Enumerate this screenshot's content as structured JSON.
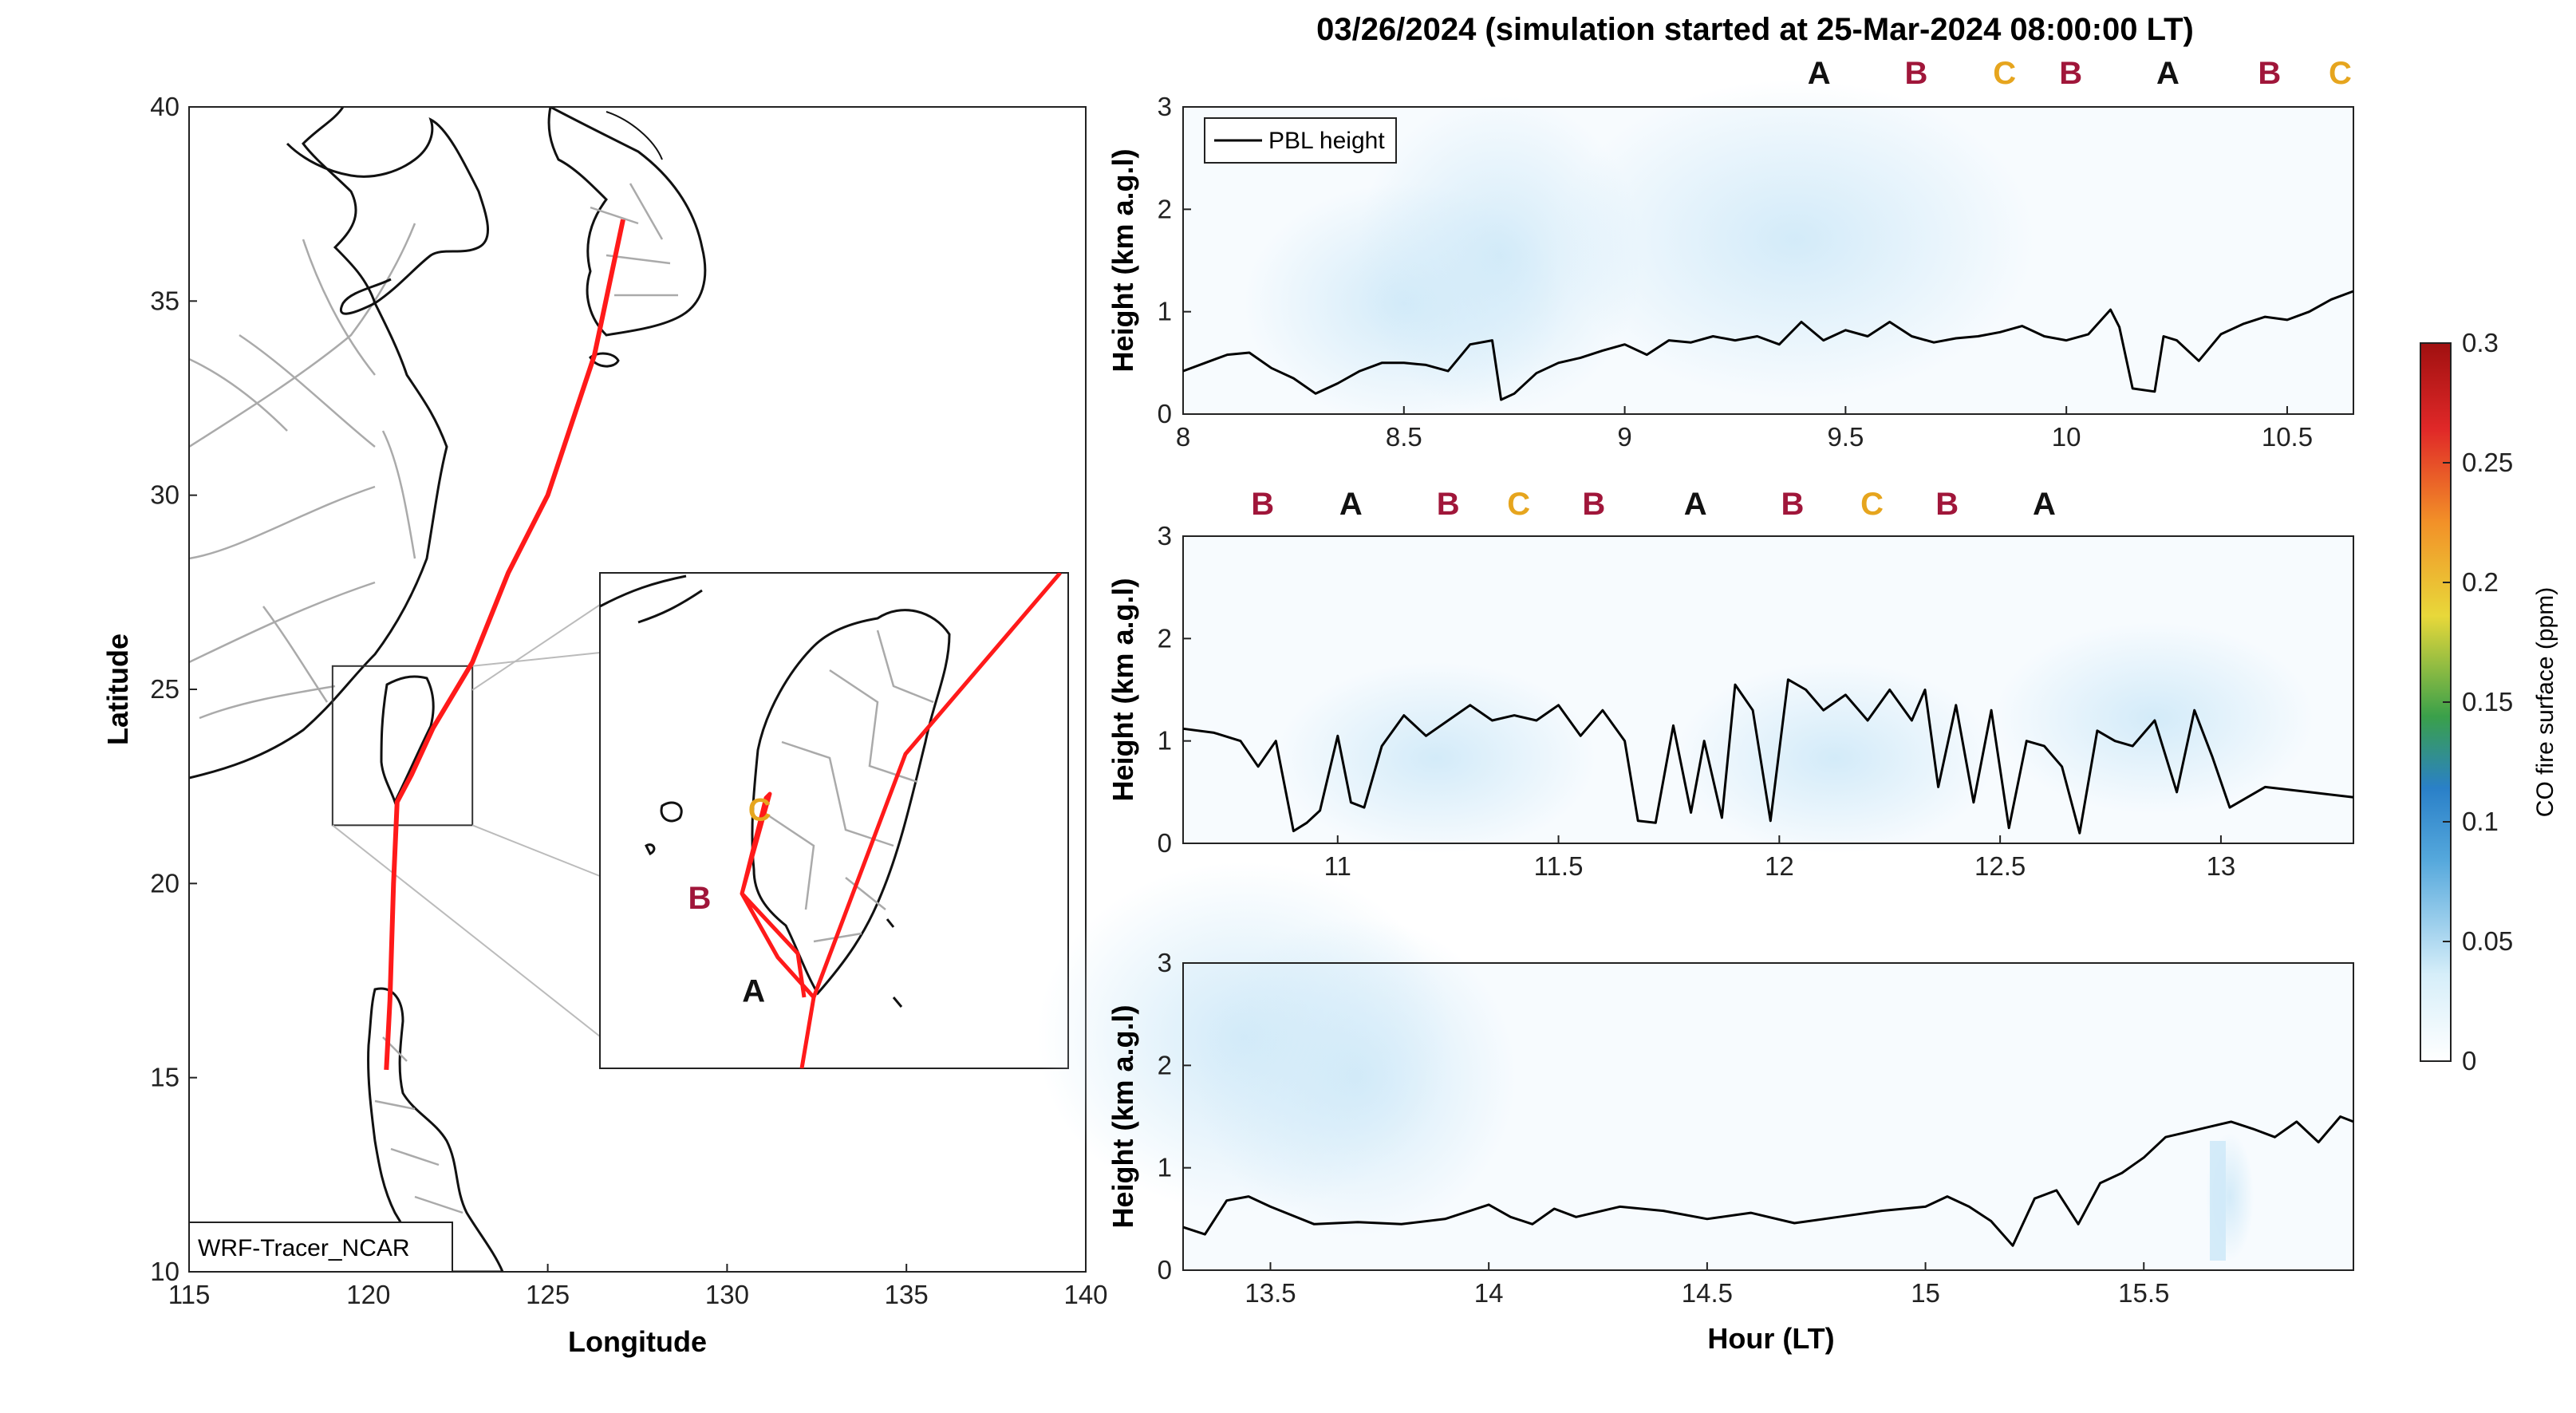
{
  "title": "03/26/2024 (simulation started at 25-Mar-2024 08:00:00 LT)",
  "colors": {
    "A": "#111111",
    "B": "#a0163a",
    "C": "#e6a51e",
    "track": "#ff1a1a",
    "coast": "#111111",
    "borders": "#aaaaaa",
    "pbl": "#000000",
    "fireLight": "#cfe9f8"
  },
  "map": {
    "xlabel": "Longitude",
    "ylabel": "Latitude",
    "xlim": [
      115,
      140
    ],
    "ylim": [
      10,
      40
    ],
    "xticks": [
      "115",
      "120",
      "125",
      "130",
      "135",
      "140"
    ],
    "yticks": [
      "10",
      "15",
      "20",
      "25",
      "30",
      "35",
      "40"
    ],
    "model_label": "WRF-Tracer_NCAR",
    "track": [
      [
        127.1,
        37.1
      ],
      [
        126.3,
        33.6
      ],
      [
        125.0,
        30.0
      ],
      [
        123.9,
        28.0
      ],
      [
        122.9,
        25.7
      ],
      [
        121.8,
        24.0
      ],
      [
        121.2,
        22.8
      ],
      [
        120.8,
        22.1
      ],
      [
        120.7,
        20.0
      ],
      [
        120.6,
        17.0
      ],
      [
        120.5,
        15.2
      ]
    ],
    "inset_box": {
      "lon": [
        119.0,
        122.9
      ],
      "lat": [
        21.5,
        25.6
      ]
    },
    "inset": {
      "lon": [
        119.0,
        122.9
      ],
      "lat": [
        21.5,
        25.6
      ],
      "labels": [
        {
          "text": "A",
          "lon": 120.28,
          "lat": 22.05
        },
        {
          "text": "B",
          "lon": 119.83,
          "lat": 22.82
        },
        {
          "text": "C",
          "lon": 120.33,
          "lat": 23.55
        }
      ]
    }
  },
  "panel_markers": {
    "panel1": [
      {
        "text": "A",
        "hour": 9.44
      },
      {
        "text": "B",
        "hour": 9.66
      },
      {
        "text": "C",
        "hour": 9.86
      },
      {
        "text": "B",
        "hour": 10.01
      },
      {
        "text": "A",
        "hour": 10.23
      },
      {
        "text": "B",
        "hour": 10.46
      },
      {
        "text": "C",
        "hour": 10.62
      }
    ],
    "panel2": [
      {
        "text": "B",
        "hour": 10.83
      },
      {
        "text": "A",
        "hour": 11.03
      },
      {
        "text": "B",
        "hour": 11.25
      },
      {
        "text": "C",
        "hour": 11.41
      },
      {
        "text": "B",
        "hour": 11.58
      },
      {
        "text": "A",
        "hour": 11.81
      },
      {
        "text": "B",
        "hour": 12.03
      },
      {
        "text": "C",
        "hour": 12.21
      },
      {
        "text": "B",
        "hour": 12.38
      },
      {
        "text": "A",
        "hour": 12.6
      }
    ]
  },
  "colorbar": {
    "label": "CO fire surface (ppm)",
    "ticks": [
      "0",
      "0.05",
      "0.1",
      "0.15",
      "0.2",
      "0.25",
      "0.3"
    ],
    "range": [
      0,
      0.3
    ]
  },
  "chart_data": [
    {
      "type": "line",
      "ylabel": "Height (km a.g.l)",
      "xlabel": "",
      "xlim": [
        8,
        10.65
      ],
      "ylim": [
        0,
        3
      ],
      "xticks": [
        "8",
        "8.5",
        "9",
        "9.5",
        "10",
        "10.5"
      ],
      "yticks": [
        "0",
        "1",
        "2",
        "3"
      ],
      "legend": "PBL height",
      "series": [
        {
          "name": "PBL height",
          "x": [
            8.0,
            8.05,
            8.1,
            8.15,
            8.2,
            8.25,
            8.3,
            8.35,
            8.4,
            8.45,
            8.5,
            8.55,
            8.6,
            8.65,
            8.7,
            8.72,
            8.75,
            8.8,
            8.85,
            8.9,
            8.95,
            9.0,
            9.05,
            9.1,
            9.15,
            9.2,
            9.25,
            9.3,
            9.35,
            9.4,
            9.45,
            9.5,
            9.55,
            9.6,
            9.65,
            9.7,
            9.75,
            9.8,
            9.85,
            9.9,
            9.95,
            10.0,
            10.05,
            10.1,
            10.12,
            10.15,
            10.2,
            10.22,
            10.25,
            10.3,
            10.35,
            10.4,
            10.45,
            10.5,
            10.55,
            10.6,
            10.65
          ],
          "y": [
            0.42,
            0.5,
            0.58,
            0.6,
            0.45,
            0.35,
            0.2,
            0.3,
            0.42,
            0.5,
            0.5,
            0.48,
            0.42,
            0.68,
            0.72,
            0.14,
            0.2,
            0.4,
            0.5,
            0.55,
            0.62,
            0.68,
            0.58,
            0.72,
            0.7,
            0.76,
            0.72,
            0.76,
            0.68,
            0.9,
            0.72,
            0.82,
            0.76,
            0.9,
            0.76,
            0.7,
            0.74,
            0.76,
            0.8,
            0.86,
            0.76,
            0.72,
            0.78,
            1.02,
            0.85,
            0.25,
            0.22,
            0.76,
            0.72,
            0.52,
            0.78,
            0.88,
            0.95,
            0.92,
            1.0,
            1.12,
            1.2
          ]
        }
      ]
    },
    {
      "type": "line",
      "ylabel": "Height (km a.g.l)",
      "xlabel": "",
      "xlim": [
        10.65,
        13.3
      ],
      "ylim": [
        0,
        3
      ],
      "xticks": [
        "11",
        "11.5",
        "12",
        "12.5",
        "13"
      ],
      "yticks": [
        "0",
        "1",
        "2",
        "3"
      ],
      "series": [
        {
          "name": "PBL height",
          "x": [
            10.65,
            10.72,
            10.78,
            10.82,
            10.86,
            10.9,
            10.93,
            10.96,
            11.0,
            11.03,
            11.06,
            11.1,
            11.15,
            11.2,
            11.25,
            11.3,
            11.35,
            11.4,
            11.45,
            11.5,
            11.55,
            11.6,
            11.65,
            11.68,
            11.72,
            11.76,
            11.8,
            11.83,
            11.87,
            11.9,
            11.94,
            11.98,
            12.02,
            12.06,
            12.1,
            12.15,
            12.2,
            12.25,
            12.3,
            12.33,
            12.36,
            12.4,
            12.44,
            12.48,
            12.52,
            12.56,
            12.6,
            12.64,
            12.68,
            12.72,
            12.76,
            12.8,
            12.85,
            12.9,
            12.94,
            12.98,
            13.02,
            13.1,
            13.2,
            13.3
          ],
          "y": [
            1.12,
            1.08,
            1.0,
            0.75,
            1.0,
            0.12,
            0.2,
            0.32,
            1.05,
            0.4,
            0.35,
            0.95,
            1.25,
            1.05,
            1.2,
            1.35,
            1.2,
            1.25,
            1.2,
            1.35,
            1.05,
            1.3,
            1.0,
            0.22,
            0.2,
            1.15,
            0.3,
            1.0,
            0.25,
            1.55,
            1.3,
            0.22,
            1.6,
            1.5,
            1.3,
            1.45,
            1.2,
            1.5,
            1.2,
            1.5,
            0.55,
            1.35,
            0.4,
            1.3,
            0.15,
            1.0,
            0.95,
            0.75,
            0.1,
            1.1,
            1.0,
            0.95,
            1.2,
            0.5,
            1.3,
            0.85,
            0.35,
            0.55,
            0.5,
            0.45
          ]
        }
      ]
    },
    {
      "type": "line",
      "ylabel": "Height (km a.g.l)",
      "xlabel": "Hour (LT)",
      "xlim": [
        13.3,
        15.98
      ],
      "ylim": [
        0,
        3
      ],
      "xticks": [
        "13.5",
        "14",
        "14.5",
        "15",
        "15.5"
      ],
      "yticks": [
        "0",
        "1",
        "2",
        "3"
      ],
      "series": [
        {
          "name": "PBL height",
          "x": [
            13.3,
            13.35,
            13.4,
            13.45,
            13.5,
            13.6,
            13.7,
            13.8,
            13.9,
            14.0,
            14.05,
            14.1,
            14.15,
            14.2,
            14.3,
            14.4,
            14.5,
            14.6,
            14.7,
            14.8,
            14.9,
            15.0,
            15.05,
            15.1,
            15.15,
            15.2,
            15.25,
            15.3,
            15.35,
            15.4,
            15.45,
            15.5,
            15.55,
            15.6,
            15.65,
            15.7,
            15.75,
            15.8,
            15.85,
            15.9,
            15.95,
            15.98
          ],
          "y": [
            0.42,
            0.35,
            0.68,
            0.72,
            0.62,
            0.45,
            0.47,
            0.45,
            0.5,
            0.64,
            0.52,
            0.45,
            0.6,
            0.52,
            0.62,
            0.58,
            0.5,
            0.56,
            0.46,
            0.52,
            0.58,
            0.62,
            0.72,
            0.62,
            0.48,
            0.24,
            0.7,
            0.78,
            0.45,
            0.85,
            0.95,
            1.1,
            1.3,
            1.35,
            1.4,
            1.45,
            1.38,
            1.3,
            1.45,
            1.25,
            1.5,
            1.45
          ]
        }
      ]
    }
  ]
}
